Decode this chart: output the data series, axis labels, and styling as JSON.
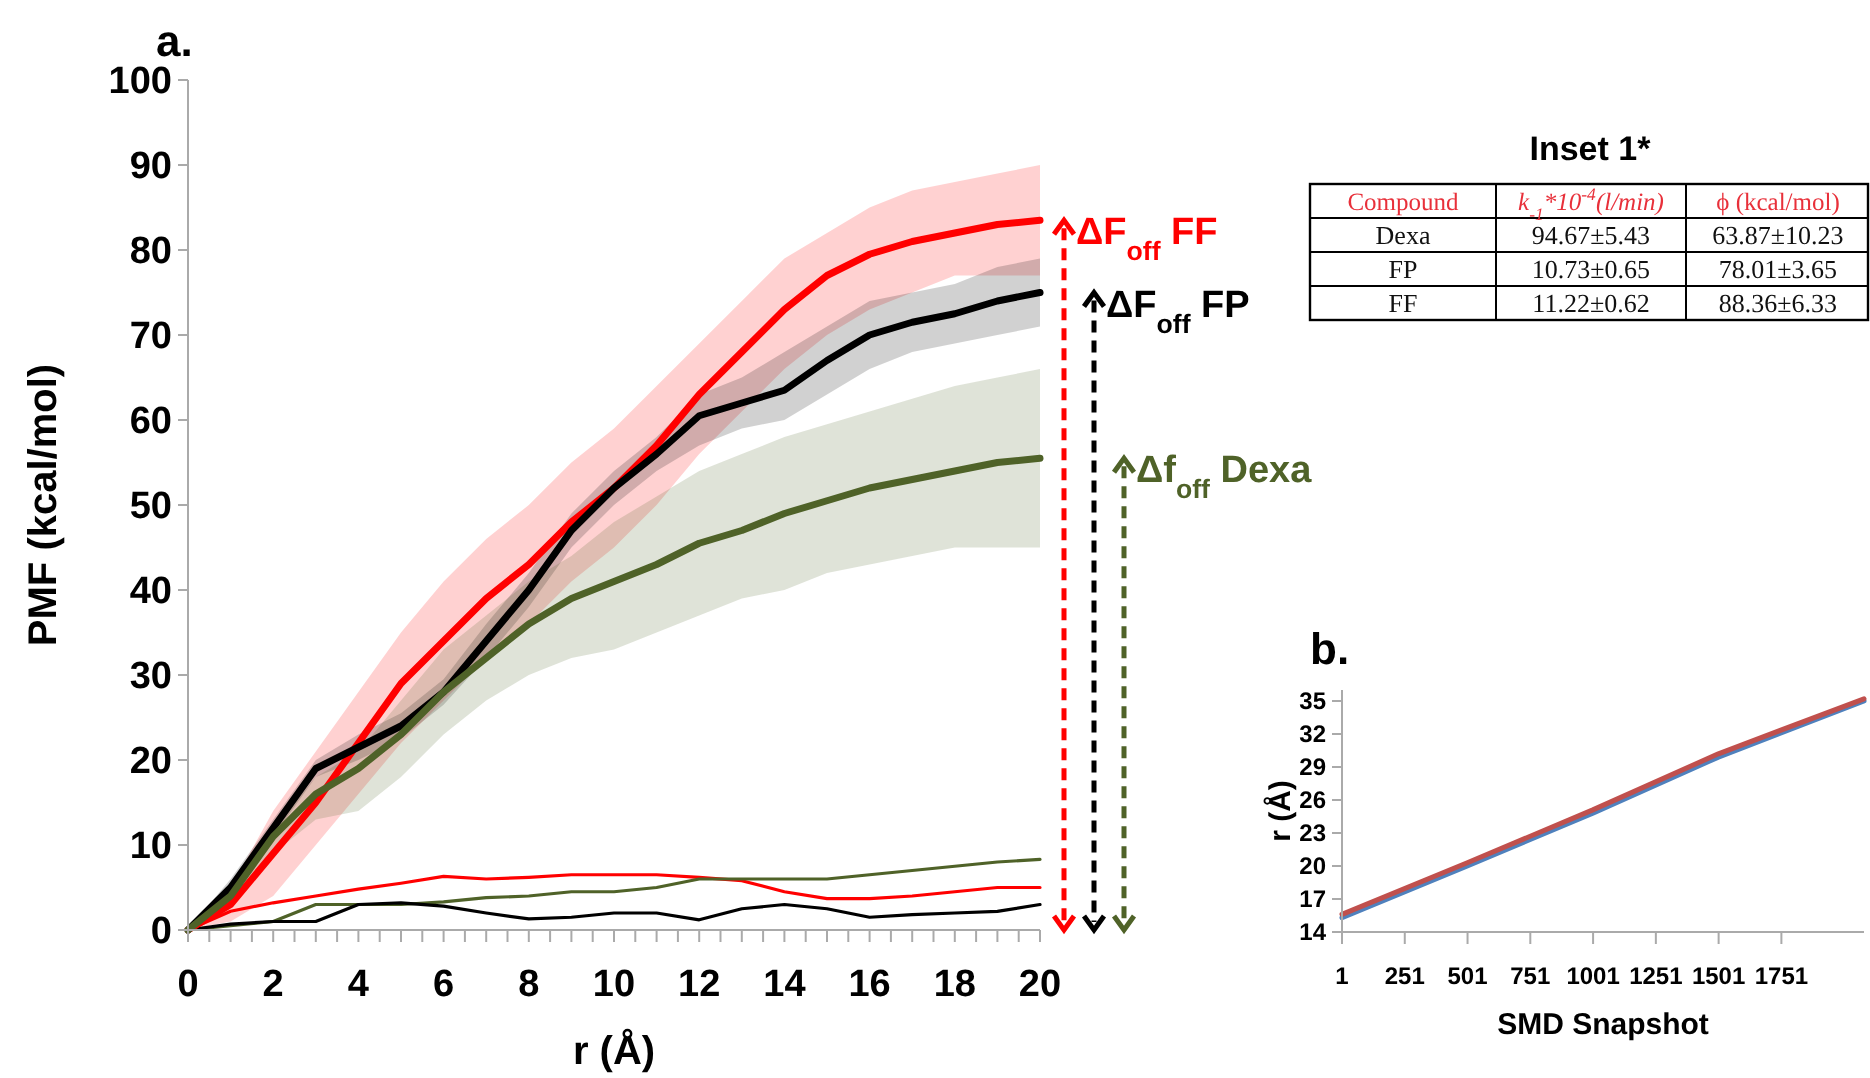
{
  "chart_data": [
    {
      "type": "line",
      "title": "a.",
      "xlabel": "r (Å)",
      "ylabel": "PMF (kcal/mol)",
      "x": [
        0,
        1,
        2,
        3,
        4,
        5,
        6,
        7,
        8,
        9,
        10,
        11,
        12,
        13,
        14,
        15,
        16,
        17,
        18,
        19,
        20
      ],
      "xlim": [
        0,
        20
      ],
      "ylim": [
        0,
        100
      ],
      "xticks": [
        0,
        {
          "value": 0.5,
          "label": null
        },
        {
          "value": 1,
          "label": null
        },
        {
          "value": 1.5,
          "label": null
        },
        2,
        {
          "value": 2.5,
          "label": null
        },
        {
          "value": 3,
          "label": null
        },
        {
          "value": 3.5,
          "label": null
        },
        4,
        {
          "value": 4.5,
          "label": null
        },
        {
          "value": 5,
          "label": null
        },
        {
          "value": 5.5,
          "label": null
        },
        6,
        {
          "value": 6.5,
          "label": null
        },
        {
          "value": 7,
          "label": null
        },
        {
          "value": 7.5,
          "label": null
        },
        8,
        {
          "value": 8.5,
          "label": null
        },
        {
          "value": 9,
          "label": null
        },
        {
          "value": 9.5,
          "label": null
        },
        10,
        {
          "value": 10.5,
          "label": null
        },
        {
          "value": 11,
          "label": null
        },
        {
          "value": 11.5,
          "label": null
        },
        12,
        {
          "value": 12.5,
          "label": null
        },
        {
          "value": 13,
          "label": null
        },
        {
          "value": 13.5,
          "label": null
        },
        14,
        {
          "value": 14.5,
          "label": null
        },
        {
          "value": 15,
          "label": null
        },
        {
          "value": 15.5,
          "label": null
        },
        16,
        {
          "value": 16.5,
          "label": null
        },
        {
          "value": 17,
          "label": null
        },
        {
          "value": 17.5,
          "label": null
        },
        18,
        {
          "value": 18.5,
          "label": null
        },
        {
          "value": 19,
          "label": null
        },
        {
          "value": 19.5,
          "label": null
        },
        20
      ],
      "yticks": [
        0,
        10,
        20,
        30,
        40,
        50,
        60,
        70,
        80,
        90,
        100
      ],
      "series": [
        {
          "color": "#ff0000",
          "values": [
            0,
            3,
            9,
            15,
            22,
            29,
            34,
            39,
            43,
            48,
            52,
            57,
            63,
            68,
            73,
            77,
            79.5,
            81,
            82,
            83,
            83.5
          ],
          "lower": [
            0,
            1,
            4,
            10,
            16,
            22,
            27,
            32,
            36,
            41,
            45,
            50,
            56,
            61,
            66,
            70,
            73,
            75,
            77,
            77,
            77
          ],
          "upper": [
            0,
            5,
            14,
            21,
            28,
            35,
            41,
            46,
            50,
            55,
            59,
            64,
            69,
            74,
            79,
            82,
            85,
            87,
            88,
            89,
            90
          ]
        },
        {
          "color": "#000000",
          "values": [
            0,
            5,
            12,
            19,
            21.5,
            24,
            28,
            34,
            40,
            47,
            52,
            56,
            60.5,
            62,
            63.5,
            67,
            70,
            71.5,
            72.5,
            74,
            75
          ],
          "lower": [
            0,
            4,
            11,
            18,
            20,
            22.5,
            26.5,
            32,
            38,
            45,
            50,
            54,
            57,
            59,
            60,
            63,
            66,
            68,
            69,
            70,
            71
          ],
          "upper": [
            0,
            6,
            13,
            20,
            23,
            25.5,
            29.5,
            36,
            42,
            49,
            54,
            58,
            63,
            65,
            68,
            71,
            74,
            75,
            76,
            78,
            79
          ]
        },
        {
          "color": "#4f6228",
          "values": [
            0,
            4,
            11,
            16,
            19,
            23,
            28,
            32,
            36,
            39,
            41,
            43,
            45.5,
            47,
            49,
            50.5,
            52,
            53,
            54,
            55,
            55.5
          ],
          "lower": [
            0,
            3,
            9,
            13,
            14,
            18,
            23,
            27,
            30,
            32,
            33,
            35,
            37,
            39,
            40,
            42,
            43,
            44,
            45,
            45,
            45
          ],
          "upper": [
            0,
            5,
            12,
            18,
            21,
            27,
            33,
            37,
            41,
            44,
            48,
            51,
            54,
            56,
            58,
            59.5,
            61,
            62.5,
            64,
            65,
            66
          ]
        },
        {
          "color": "#ff0000",
          "values": [
            0,
            2.2,
            3.2,
            4,
            4.8,
            5.5,
            6.3,
            6,
            6.2,
            6.5,
            6.5,
            6.5,
            6.2,
            5.8,
            4.5,
            3.7,
            3.7,
            4,
            4.5,
            5,
            5
          ]
        },
        {
          "color": "#4f6228",
          "values": [
            0,
            0.5,
            1,
            3,
            3,
            3,
            3.3,
            3.8,
            4,
            4.5,
            4.5,
            5,
            6,
            6,
            6,
            6,
            6.5,
            7,
            7.5,
            8,
            8.3
          ]
        },
        {
          "color": "#000000",
          "values": [
            0,
            0.7,
            1,
            1,
            3,
            3.2,
            2.8,
            2,
            1.3,
            1.5,
            2,
            2,
            1.2,
            2.5,
            3,
            2.5,
            1.5,
            1.8,
            2,
            2.2,
            3
          ]
        }
      ],
      "annotations": [
        "ΔF$_{off}$ FF",
        "ΔF$_{off}$ FP",
        "Δf$_{off}$ Dexa"
      ]
    },
    {
      "type": "other",
      "title": "Inset 1*",
      "annotations": [
        "Compound",
        "k$_{-1}$*10$^{-4}$(l/min)",
        "ϕ (kcal/mol)",
        "Dexa",
        "94.67±5.43",
        "63.87±10.23",
        "FP",
        "10.73±0.65",
        "78.01±3.65",
        "FF",
        "11.22±0.62",
        "88.36±6.33"
      ]
    },
    {
      "type": "line",
      "title": "b.",
      "xlabel": "SMD Snapshot",
      "ylabel": "r (Å)",
      "xlim": [
        1,
        2080
      ],
      "ylim": [
        14,
        36
      ],
      "xticks": [
        1,
        251,
        501,
        751,
        1001,
        1251,
        1501,
        1751
      ],
      "yticks": [
        14,
        17,
        20,
        23,
        26,
        29,
        32,
        35
      ],
      "series": [
        {
          "color": "#4f81bd",
          "x": [
            1,
            500,
            1000,
            1500,
            2080
          ],
          "values": [
            15.3,
            20.0,
            24.8,
            29.9,
            35.0
          ]
        },
        {
          "color": "#c0504d",
          "x": [
            1,
            500,
            1000,
            1500,
            2080
          ],
          "values": [
            15.6,
            20.3,
            25.1,
            30.2,
            35.2
          ]
        }
      ]
    }
  ]
}
